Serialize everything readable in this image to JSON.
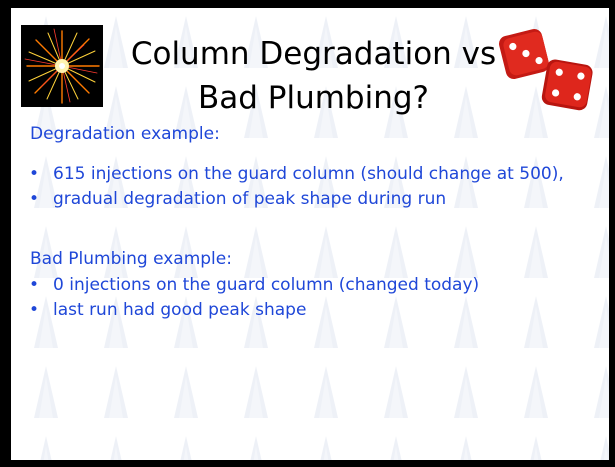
{
  "slide": {
    "title_line1": "Column Degradation vs",
    "title_line2": "Bad Plumbing?",
    "section1": {
      "heading": "Degradation example:",
      "bullets": [
        "615 injections on the guard column (should change at 500),",
        "gradual degradation of peak shape during run"
      ]
    },
    "section2": {
      "heading": "Bad Plumbing example:",
      "bullets": [
        "0 injections on the guard column (changed today)",
        "last run had good peak shape"
      ]
    },
    "bullet_char": "•",
    "images": {
      "left": "fireworks-image",
      "right": "red-dice-image"
    },
    "colors": {
      "text_blue": "#1f47d8",
      "title": "#000000",
      "background": "#ffffff",
      "frame": "#000000"
    }
  }
}
